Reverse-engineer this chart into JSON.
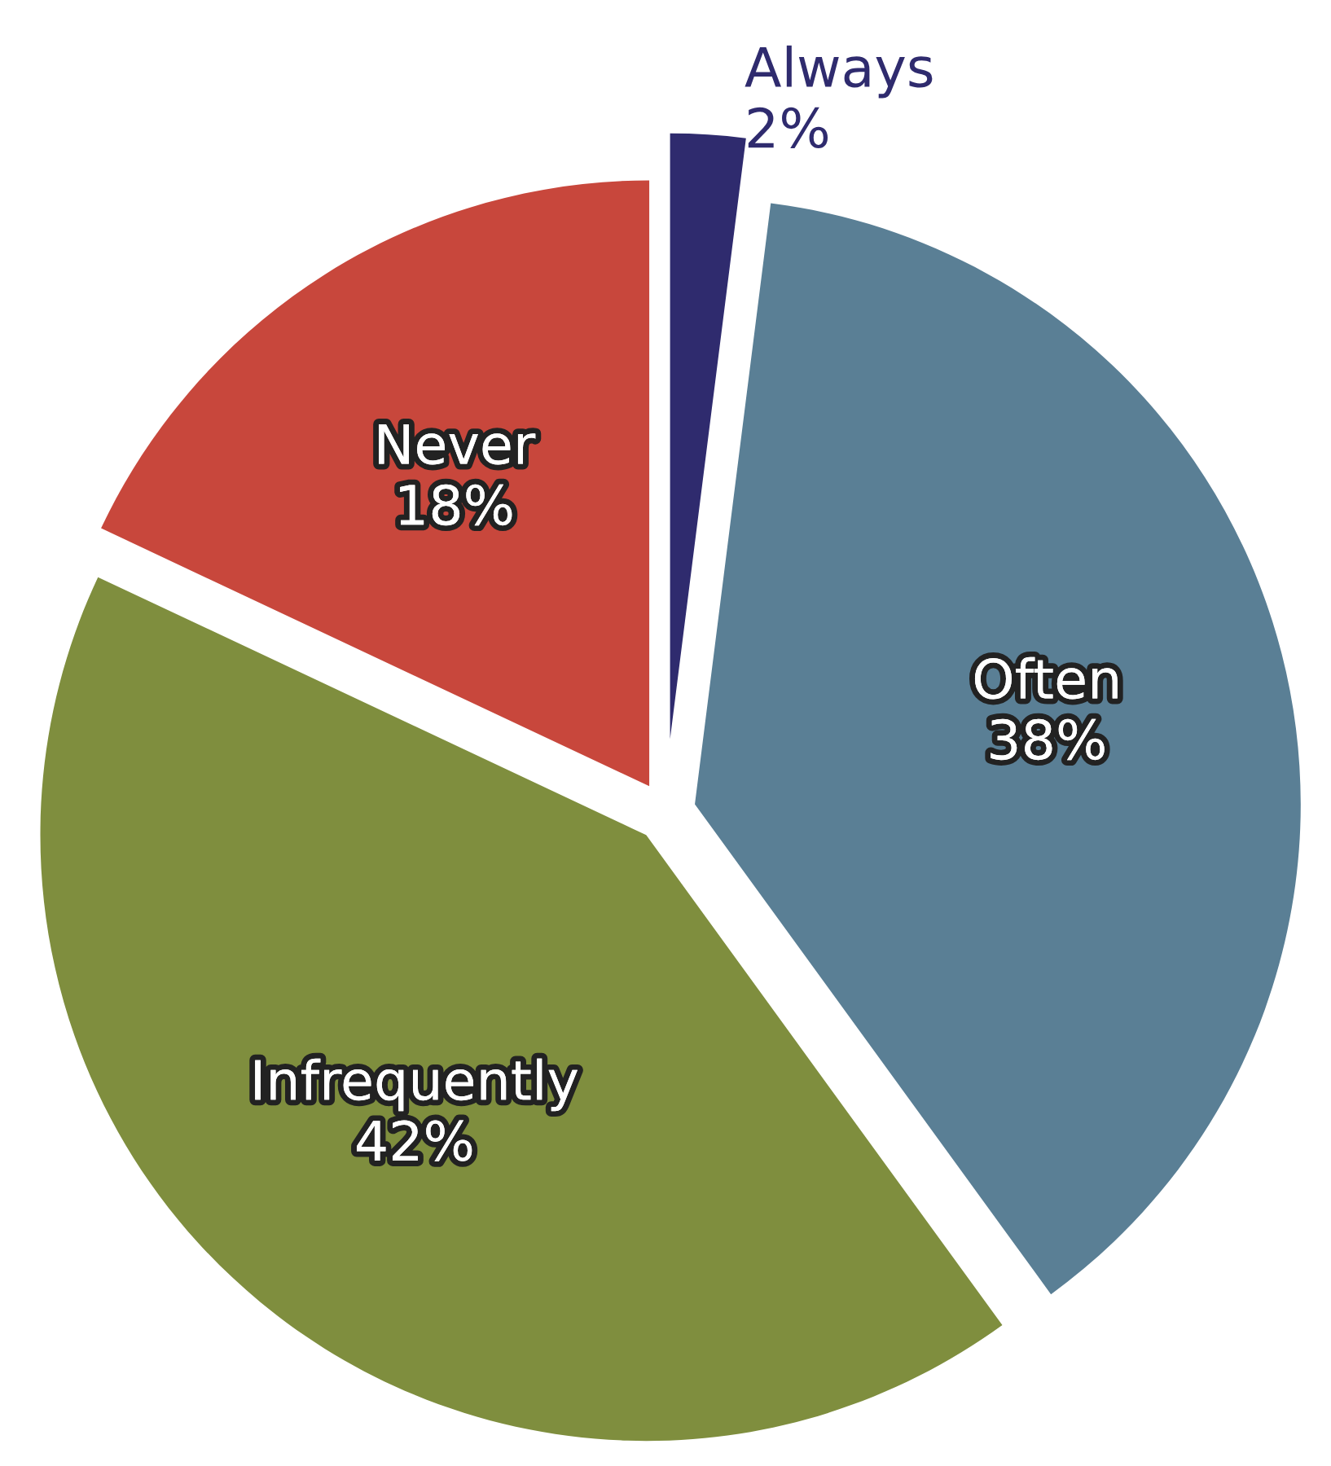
{
  "chart_data": {
    "type": "pie",
    "categories": [
      "Always",
      "Often",
      "Infrequently",
      "Never"
    ],
    "values": [
      2,
      38,
      42,
      18
    ],
    "colors": [
      "#2f2b6e",
      "#5a7f95",
      "#7f8e3e",
      "#c8473c"
    ],
    "value_labels": [
      "2%",
      "38%",
      "42%",
      "18%"
    ]
  }
}
